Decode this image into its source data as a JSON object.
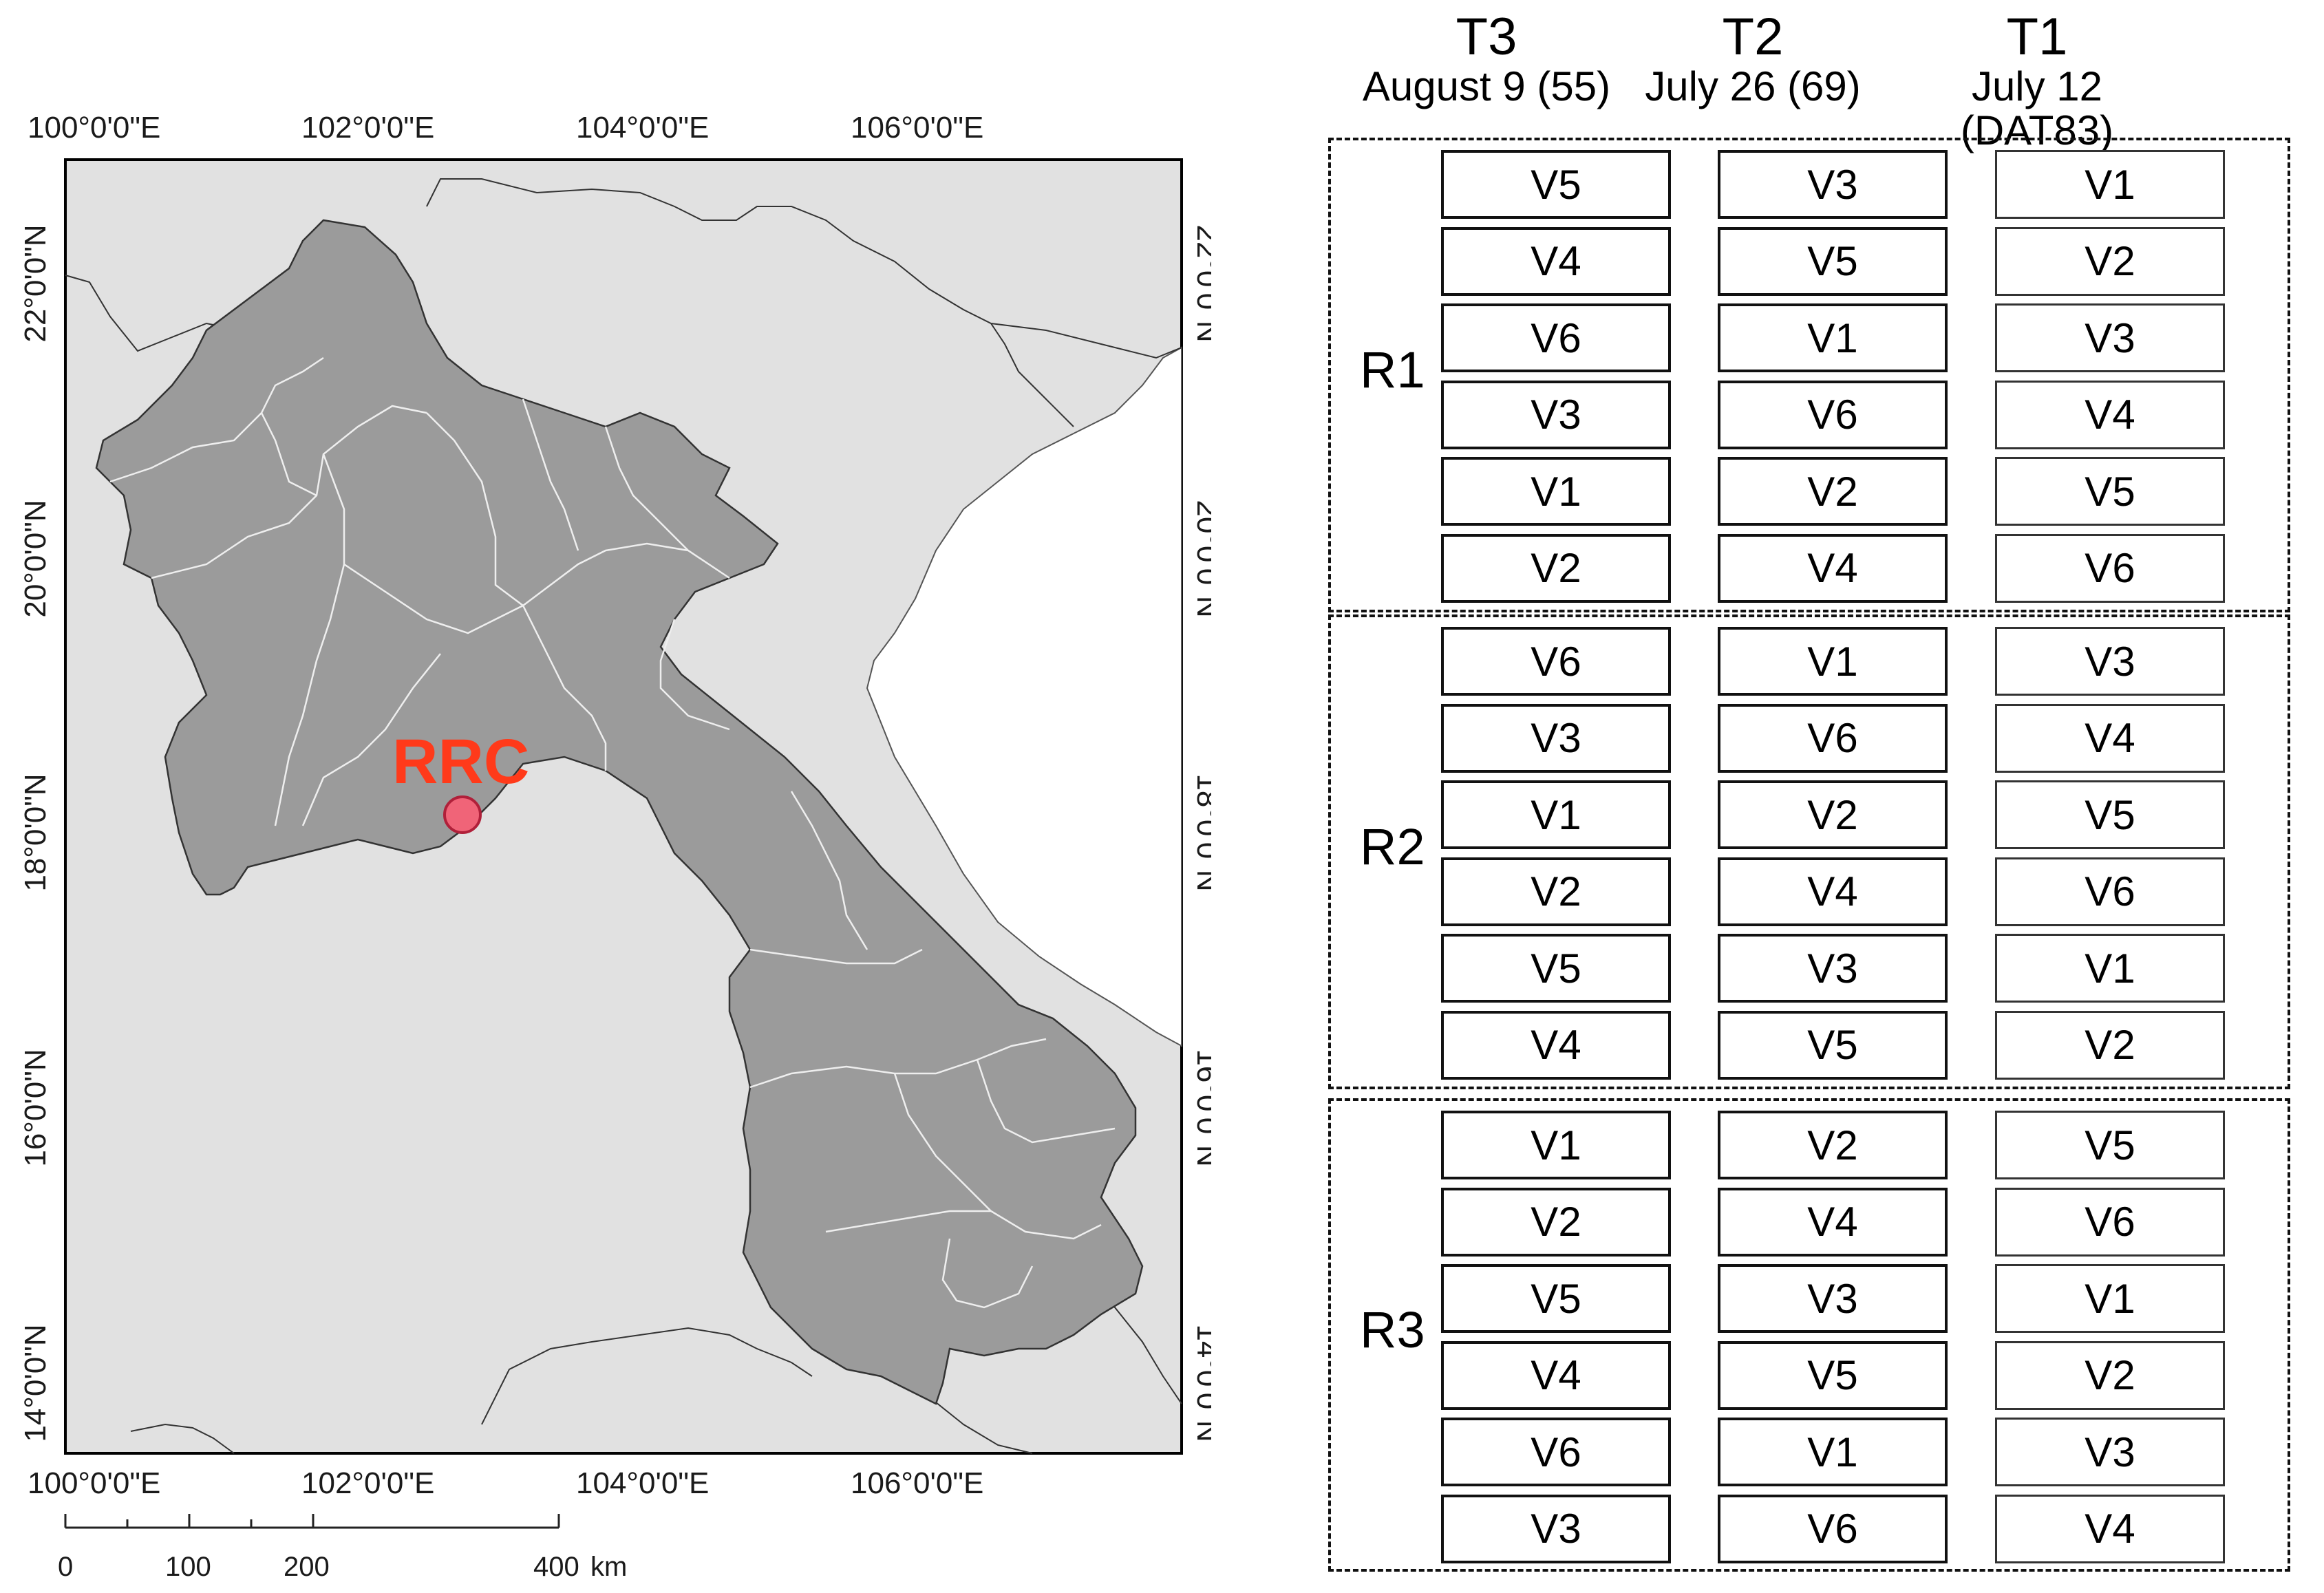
{
  "map": {
    "top_lon_labels": [
      "100°0'0\"E",
      "102°0'0\"E",
      "104°0'0\"E",
      "106°0'0\"E"
    ],
    "bottom_lon_labels": [
      "100°0'0\"E",
      "102°0'0\"E",
      "104°0'0\"E",
      "106°0'0\"E"
    ],
    "left_lat_labels": [
      "22°0'0\"N",
      "20°0'0\"N",
      "18°0'0\"N",
      "16°0'0\"N",
      "14°0'0\"N"
    ],
    "right_lat_labels": [
      "22°0'0\"N",
      "20°0'0\"N",
      "18°0'0\"N",
      "16°0'0\"N",
      "14°0'0\"N"
    ],
    "site_label": "RRC",
    "scale_bar": {
      "ticks": [
        "0",
        "100",
        "200",
        "400"
      ],
      "unit": "km"
    },
    "colors": {
      "country": "#9b9b9b",
      "background": "#e1e1e1",
      "site_fill": "#f06478",
      "site_label": "#ff3a1a"
    }
  },
  "layout": {
    "columns": [
      {
        "id": "T3",
        "title": "T3",
        "date": "August 9 (55)"
      },
      {
        "id": "T2",
        "title": "T2",
        "date": "July 26 (69)"
      },
      {
        "id": "T1",
        "title": "T1",
        "date": "July 12 (DAT83)"
      }
    ],
    "replications": [
      {
        "label": "R1",
        "T3": [
          "V5",
          "V4",
          "V6",
          "V3",
          "V1",
          "V2"
        ],
        "T2": [
          "V3",
          "V5",
          "V1",
          "V6",
          "V2",
          "V4"
        ],
        "T1": [
          "V1",
          "V2",
          "V3",
          "V4",
          "V5",
          "V6"
        ]
      },
      {
        "label": "R2",
        "T3": [
          "V6",
          "V3",
          "V1",
          "V2",
          "V5",
          "V4"
        ],
        "T2": [
          "V1",
          "V6",
          "V2",
          "V4",
          "V3",
          "V5"
        ],
        "T1": [
          "V3",
          "V4",
          "V5",
          "V6",
          "V1",
          "V2"
        ]
      },
      {
        "label": "R3",
        "T3": [
          "V1",
          "V2",
          "V5",
          "V4",
          "V6",
          "V3"
        ],
        "T2": [
          "V2",
          "V4",
          "V3",
          "V5",
          "V1",
          "V6"
        ],
        "T1": [
          "V5",
          "V6",
          "V1",
          "V2",
          "V3",
          "V4"
        ]
      }
    ]
  }
}
